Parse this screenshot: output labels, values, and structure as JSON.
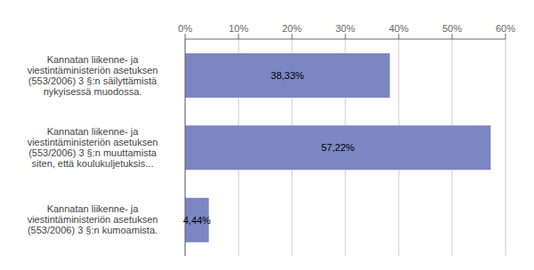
{
  "chart_data": {
    "type": "bar",
    "orientation": "horizontal",
    "categories": [
      "Kannatan liikenne- ja\nviestintäministeriön asetuksen\n(553/2006) 3 §:n säilyttämistä\nnykyisessä muodossa.",
      "Kannatan liikenne- ja\nviestintäministeriön asetuksen\n(553/2006) 3 §:n muuttamista\nsiten, että koulukuljetuksis...",
      "Kannatan liikenne- ja\nviestintäministeriön asetuksen\n(553/2006) 3 §:n kumoamista."
    ],
    "values": [
      38.33,
      57.22,
      4.44
    ],
    "value_labels": [
      "38,33%",
      "57,22%",
      "4,44%"
    ],
    "color": "#7b86c2",
    "xlim": [
      0,
      60
    ],
    "xticks": [
      {
        "value": 0,
        "label": "0%"
      },
      {
        "value": 10,
        "label": "10%"
      },
      {
        "value": 20,
        "label": "20%"
      },
      {
        "value": 30,
        "label": "30%"
      },
      {
        "value": 40,
        "label": "40%"
      },
      {
        "value": 50,
        "label": "50%"
      },
      {
        "value": 60,
        "label": "60%"
      }
    ],
    "grid": true
  }
}
